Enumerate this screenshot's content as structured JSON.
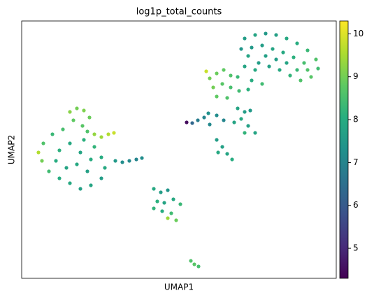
{
  "chart_data": {
    "type": "scatter",
    "title": "log1p_total_counts",
    "x_label": "UMAP1",
    "y_label": "UMAP2",
    "xlim": [
      0,
      450
    ],
    "ylim": [
      0,
      368
    ],
    "colormap": "viridis",
    "clim": [
      4.3,
      10.3
    ],
    "cticks": [
      5,
      6,
      7,
      8,
      9,
      10
    ],
    "x": [
      319,
      334,
      349,
      364,
      379,
      394,
      409,
      421,
      424,
      414,
      399,
      384,
      369,
      354,
      339,
      324,
      314,
      329,
      344,
      359,
      374,
      389,
      404,
      409,
      364,
      349,
      334,
      319,
      309,
      344,
      329,
      379,
      394,
      264,
      269,
      279,
      289,
      299,
      274,
      287,
      299,
      311,
      279,
      294,
      324,
      309,
      319,
      314,
      324,
      334,
      319,
      304,
      279,
      287,
      294,
      301,
      281,
      327,
      236,
      244,
      252,
      261,
      269,
      279,
      289,
      267,
      69,
      79,
      89,
      97,
      74,
      87,
      59,
      44,
      31,
      24,
      29,
      39,
      54,
      69,
      84,
      99,
      114,
      119,
      114,
      104,
      89,
      69,
      54,
      49,
      64,
      79,
      94,
      99,
      84,
      104,
      114,
      124,
      132,
      94,
      134,
      144,
      154,
      164,
      172,
      189,
      199,
      209,
      194,
      204,
      217,
      227,
      189,
      201,
      214,
      209,
      221,
      242,
      247,
      253
    ],
    "y": [
      343,
      348,
      350,
      348,
      343,
      336,
      326,
      313,
      300,
      288,
      283,
      290,
      298,
      303,
      308,
      318,
      328,
      330,
      333,
      328,
      323,
      316,
      308,
      298,
      313,
      318,
      298,
      303,
      288,
      278,
      283,
      308,
      298,
      296,
      286,
      293,
      298,
      290,
      273,
      278,
      273,
      268,
      260,
      258,
      270,
      243,
      238,
      228,
      218,
      208,
      208,
      223,
      198,
      188,
      178,
      170,
      180,
      240,
      223,
      222,
      226,
      230,
      220,
      233,
      226,
      236,
      238,
      243,
      240,
      230,
      226,
      218,
      213,
      206,
      193,
      180,
      168,
      153,
      143,
      136,
      128,
      133,
      143,
      158,
      173,
      188,
      198,
      193,
      183,
      168,
      158,
      163,
      153,
      170,
      180,
      206,
      202,
      206,
      208,
      210,
      168,
      166,
      168,
      170,
      172,
      128,
      123,
      126,
      110,
      108,
      113,
      106,
      100,
      96,
      93,
      86,
      83,
      25,
      20,
      17
    ],
    "values": [
      7.6,
      7.8,
      7.5,
      7.7,
      7.9,
      8.0,
      8.3,
      8.6,
      8.4,
      8.7,
      8.6,
      8.2,
      7.9,
      7.7,
      7.6,
      7.8,
      7.4,
      7.5,
      7.6,
      7.8,
      7.9,
      8.1,
      8.5,
      8.6,
      7.6,
      7.7,
      7.9,
      7.8,
      8.3,
      8.4,
      8.0,
      7.8,
      8.3,
      9.8,
      9.0,
      8.9,
      8.8,
      8.6,
      9.0,
      8.7,
      8.5,
      8.4,
      8.8,
      8.6,
      8.1,
      7.8,
      7.6,
      7.9,
      7.7,
      7.8,
      8.2,
      7.8,
      7.6,
      7.7,
      7.8,
      8.0,
      7.9,
      7.5,
      4.5,
      6.3,
      6.8,
      7.0,
      7.1,
      7.2,
      7.0,
      7.3,
      9.2,
      9.0,
      9.1,
      8.9,
      8.8,
      8.7,
      8.5,
      8.3,
      8.6,
      9.6,
      9.0,
      8.4,
      8.0,
      7.9,
      7.7,
      7.8,
      7.6,
      7.9,
      8.0,
      8.2,
      8.1,
      7.9,
      8.1,
      8.0,
      7.8,
      7.9,
      7.7,
      8.0,
      7.8,
      9.3,
      9.4,
      9.6,
      9.8,
      8.6,
      7.5,
      7.2,
      7.1,
      7.0,
      7.2,
      7.9,
      7.6,
      7.4,
      8.1,
      7.8,
      7.9,
      8.3,
      8.2,
      8.0,
      8.4,
      9.4,
      8.9,
      8.6,
      8.7,
      8.5
    ]
  }
}
